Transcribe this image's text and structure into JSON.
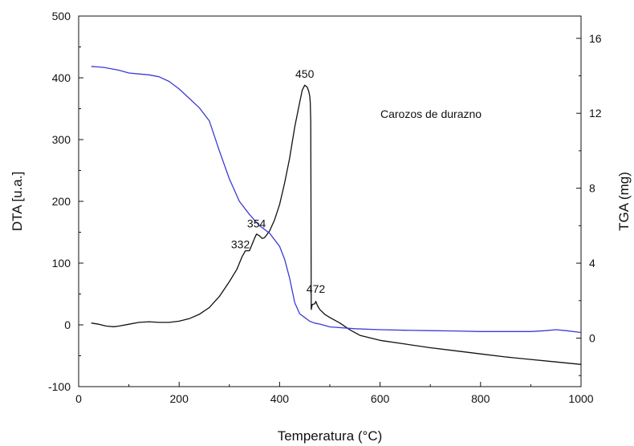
{
  "chart_data": {
    "type": "line",
    "caption": "Carozos de durazno",
    "xlabel": "Temperatura (°C)",
    "ylabel_left": "DTA [u.a.]",
    "ylabel_right": "TGA (mg)",
    "xlim": [
      0,
      1000
    ],
    "ylim_left": [
      -100,
      500
    ],
    "ylim_right": [
      -2.59,
      17.19
    ],
    "x_ticks": [
      "0",
      "200",
      "400",
      "600",
      "800",
      "1000"
    ],
    "y_left_ticks": [
      "-100",
      "0",
      "100",
      "200",
      "300",
      "400",
      "500"
    ],
    "y_right_ticks": [
      "0",
      "4",
      "8",
      "12",
      "16"
    ],
    "grid": false,
    "series": [
      {
        "axis": "left",
        "color": "#111111",
        "x": [
          25,
          40,
          55,
          70,
          80,
          100,
          120,
          140,
          160,
          180,
          200,
          220,
          240,
          260,
          280,
          300,
          315,
          325,
          332,
          340,
          345,
          350,
          354,
          360,
          365,
          370,
          380,
          390,
          400,
          410,
          420,
          430,
          440,
          445,
          450,
          455,
          458,
          460,
          461,
          462,
          462.5,
          463,
          465,
          470,
          472,
          476,
          480,
          490,
          500,
          520,
          540,
          560,
          600,
          650,
          700,
          750,
          800,
          850,
          900,
          950,
          1000
        ],
        "y": [
          3,
          1,
          -2,
          -3,
          -2,
          1,
          4,
          5,
          4,
          4,
          6,
          10,
          17,
          28,
          46,
          70,
          90,
          110,
          120,
          120,
          130,
          140,
          147,
          144,
          140,
          141,
          152,
          170,
          195,
          230,
          270,
          320,
          360,
          380,
          388,
          385,
          378,
          370,
          360,
          330,
          200,
          25,
          33,
          34,
          38,
          30,
          25,
          17,
          12,
          3,
          -8,
          -17,
          -25,
          -31,
          -37,
          -42,
          -47,
          -52,
          -56,
          -60,
          -64
        ]
      },
      {
        "axis": "right",
        "color": "#3b3bd6",
        "x": [
          25,
          50,
          80,
          100,
          120,
          140,
          160,
          180,
          200,
          220,
          240,
          260,
          280,
          300,
          320,
          340,
          360,
          380,
          400,
          410,
          420,
          430,
          440,
          450,
          460,
          470,
          480,
          500,
          550,
          600,
          650,
          700,
          750,
          800,
          850,
          900,
          930,
          950,
          970,
          1000
        ],
        "y": [
          14.5,
          14.45,
          14.3,
          14.15,
          14.1,
          14.05,
          13.95,
          13.7,
          13.3,
          12.8,
          12.3,
          11.6,
          10.0,
          8.5,
          7.3,
          6.6,
          6.0,
          5.6,
          4.9,
          4.2,
          3.2,
          1.9,
          1.3,
          1.1,
          0.9,
          0.8,
          0.75,
          0.6,
          0.5,
          0.45,
          0.42,
          0.4,
          0.38,
          0.35,
          0.35,
          0.35,
          0.4,
          0.45,
          0.4,
          0.3
        ]
      }
    ],
    "annotations": [
      {
        "text": "450",
        "x": 450,
        "y": 400,
        "axis": "left"
      },
      {
        "text": "354",
        "x": 354,
        "y": 158,
        "axis": "left"
      },
      {
        "text": "332",
        "x": 322,
        "y": 124,
        "axis": "left"
      },
      {
        "text": "472",
        "x": 472,
        "y": 52,
        "axis": "left"
      }
    ]
  }
}
